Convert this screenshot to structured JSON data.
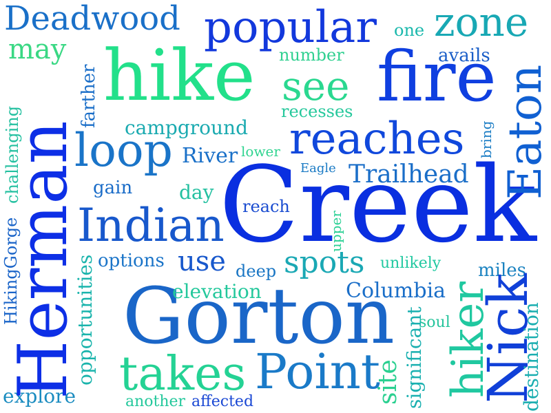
{
  "words": {
    "creek": {
      "text": "Creek",
      "color": "#0a2fe0"
    },
    "gorton": {
      "text": "Gorton",
      "color": "#1a66c8"
    },
    "herman": {
      "text": "Herman",
      "color": "#0d2fe6"
    },
    "hike": {
      "text": "hike",
      "color": "#22e08a"
    },
    "fire": {
      "text": "fire",
      "color": "#0f3fe0"
    },
    "nick": {
      "text": "Nick",
      "color": "#1040d8"
    },
    "indian": {
      "text": "Indian",
      "color": "#1858cc"
    },
    "point": {
      "text": "Point",
      "color": "#1a7ac8"
    },
    "takes": {
      "text": "takes",
      "color": "#24d294"
    },
    "hiker": {
      "text": "hiker",
      "color": "#20c8a0"
    },
    "eaton": {
      "text": "Eaton",
      "color": "#1060d2"
    },
    "reaches": {
      "text": "reaches",
      "color": "#1048dc"
    },
    "loop": {
      "text": "loop",
      "color": "#1a74c8"
    },
    "popular": {
      "text": "popular",
      "color": "#1238dc"
    },
    "deadwood": {
      "text": "Deadwood",
      "color": "#1a70c8"
    },
    "zone": {
      "text": "zone",
      "color": "#18a8b4"
    },
    "see": {
      "text": "see",
      "color": "#2ad890"
    },
    "spots": {
      "text": "spots",
      "color": "#1aa8b4"
    },
    "use": {
      "text": "use",
      "color": "#1858cc"
    },
    "may": {
      "text": "may",
      "color": "#3ad884"
    },
    "trailhead": {
      "text": "Trailhead",
      "color": "#1a6ec8"
    },
    "campground": {
      "text": "campground",
      "color": "#1aaab0"
    },
    "columbia": {
      "text": "Columbia",
      "color": "#1a6ec8"
    },
    "river": {
      "text": "River",
      "color": "#1a70c8"
    },
    "elevation": {
      "text": "elevation",
      "color": "#24c89c"
    },
    "options": {
      "text": "options",
      "color": "#1a74c8"
    },
    "explore": {
      "text": "explore",
      "color": "#1a8cc0"
    },
    "site": {
      "text": "site",
      "color": "#2ad090"
    },
    "significant": {
      "text": "significant",
      "color": "#1ab0b0"
    },
    "destination": {
      "text": "destination",
      "color": "#1aaeb0"
    },
    "opportunities": {
      "text": "opportunities",
      "color": "#1ab4ac"
    },
    "challenging": {
      "text": "challenging",
      "color": "#24c0a0"
    },
    "hikinggorge": {
      "text": "HikingGorge",
      "color": "#1a64c8"
    },
    "farther": {
      "text": "farther",
      "color": "#1a6ec8"
    },
    "recesses": {
      "text": "recesses",
      "color": "#26c89c"
    },
    "number": {
      "text": "number",
      "color": "#30d090"
    },
    "avails": {
      "text": "avails",
      "color": "#1a5ec8"
    },
    "one": {
      "text": "one",
      "color": "#1ab8ac"
    },
    "bring": {
      "text": "bring",
      "color": "#1a7cc4"
    },
    "lower": {
      "text": "lower",
      "color": "#30d490"
    },
    "eagle": {
      "text": "Eagle",
      "color": "#1a7ac4"
    },
    "gain": {
      "text": "gain",
      "color": "#1a6cc8"
    },
    "day": {
      "text": "day",
      "color": "#24c0a0"
    },
    "reach": {
      "text": "reach",
      "color": "#1a4cd0"
    },
    "upper": {
      "text": "upper",
      "color": "#2ad094"
    },
    "deep": {
      "text": "deep",
      "color": "#1a76c4"
    },
    "unlikely": {
      "text": "unlikely",
      "color": "#20c8a0"
    },
    "miles": {
      "text": "miles",
      "color": "#1a82c0"
    },
    "soul": {
      "text": "soul",
      "color": "#26c49c"
    },
    "another": {
      "text": "another",
      "color": "#24c89c"
    },
    "affected": {
      "text": "affected",
      "color": "#1a48d4"
    }
  }
}
